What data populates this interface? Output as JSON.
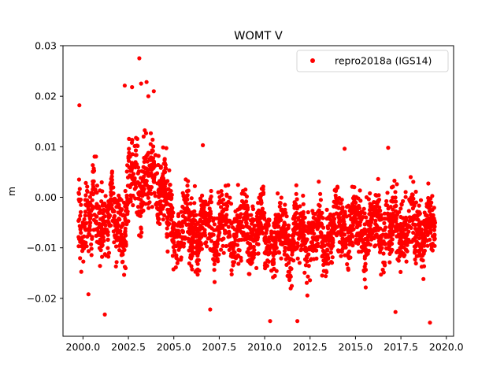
{
  "chart_data": {
    "type": "scatter",
    "title": "WOMT V",
    "xlabel": "",
    "ylabel": "m",
    "xlim": [
      1998.9,
      2020.4
    ],
    "ylim": [
      -0.0275,
      0.03
    ],
    "x_ticks": [
      2000.0,
      2002.5,
      2005.0,
      2007.5,
      2010.0,
      2012.5,
      2015.0,
      2017.5,
      2020.0
    ],
    "x_tick_labels": [
      "2000.0",
      "2002.5",
      "2005.0",
      "2007.5",
      "2010.0",
      "2012.5",
      "2015.0",
      "2017.5",
      "2020.0"
    ],
    "y_ticks": [
      -0.02,
      -0.01,
      0.0,
      0.01,
      0.02,
      0.03
    ],
    "y_tick_labels": [
      "−0.02",
      "−0.01",
      "0.00",
      "0.01",
      "0.02",
      "0.03"
    ],
    "grid": false,
    "legend": {
      "placement": "top-right",
      "entries": [
        {
          "label": "repro2018a (IGS14)",
          "color": "#ff0000",
          "marker": "dot"
        }
      ]
    },
    "series": [
      {
        "name": "repro2018a (IGS14)",
        "color": "#ff0000",
        "marker": "dot",
        "density_notes": "daily time series ~2000.0-2019.4, approximate; plotted as sampled points",
        "segments": [
          {
            "x_start": 1999.75,
            "x_end": 2002.5,
            "center": -0.004,
            "spread": 0.0065
          },
          {
            "x_start": 2002.5,
            "x_end": 2004.6,
            "center": 0.003,
            "spread": 0.0065
          },
          {
            "x_start": 2004.6,
            "x_end": 2010.0,
            "center": -0.006,
            "spread": 0.0055
          },
          {
            "x_start": 2010.0,
            "x_end": 2013.5,
            "center": -0.008,
            "spread": 0.0055
          },
          {
            "x_start": 2013.5,
            "x_end": 2019.4,
            "center": -0.006,
            "spread": 0.0055
          }
        ],
        "outliers": [
          [
            1999.8,
            0.0182
          ],
          [
            2002.3,
            0.0221
          ],
          [
            2002.7,
            0.0218
          ],
          [
            2003.1,
            0.0275
          ],
          [
            2003.2,
            0.0225
          ],
          [
            2003.5,
            0.0228
          ],
          [
            2003.6,
            0.02
          ],
          [
            2003.9,
            0.021
          ],
          [
            2001.2,
            -0.0232
          ],
          [
            2000.3,
            -0.0192
          ],
          [
            2007.0,
            -0.0222
          ],
          [
            2010.3,
            -0.0245
          ],
          [
            2011.8,
            -0.0245
          ],
          [
            2017.2,
            -0.0227
          ],
          [
            2019.1,
            -0.0248
          ],
          [
            2014.4,
            0.0096
          ],
          [
            2016.8,
            0.0098
          ],
          [
            2006.6,
            0.0103
          ]
        ]
      }
    ]
  }
}
